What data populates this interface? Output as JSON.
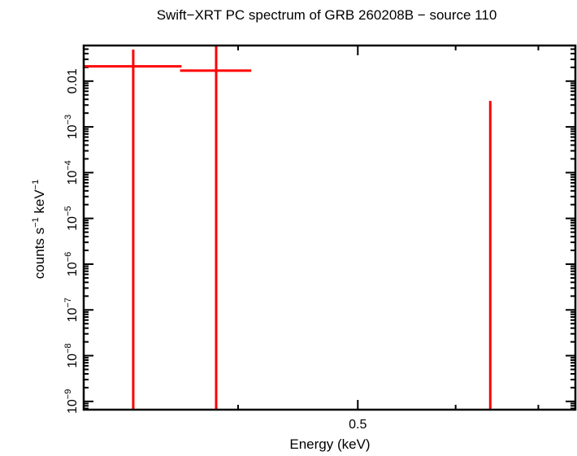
{
  "chart_data": {
    "type": "scatter",
    "title": "Swift−XRT PC spectrum of GRB 260208B − source 110",
    "xlabel": "Energy (keV)",
    "ylabel_main": "counts s",
    "ylabel_sup1": "−1",
    "ylabel_mid": " keV",
    "ylabel_sup2": "−1",
    "x_scale": "log",
    "y_scale": "log",
    "xlim": [
      0.3,
      0.75
    ],
    "ylim": [
      6.6e-10,
      0.06
    ],
    "x_ticks": [
      {
        "value": 0.5,
        "label": "0.5"
      }
    ],
    "x_minor_ticks": [
      0.4,
      0.6,
      0.7
    ],
    "y_ticks": [
      {
        "value": 0.01,
        "base": "0.01",
        "exp": ""
      },
      {
        "value": 0.001,
        "base": "10",
        "exp": "−3"
      },
      {
        "value": 0.0001,
        "base": "10",
        "exp": "−4"
      },
      {
        "value": 1e-05,
        "base": "10",
        "exp": "−5"
      },
      {
        "value": 1e-06,
        "base": "10",
        "exp": "−6"
      },
      {
        "value": 1e-07,
        "base": "10",
        "exp": "−7"
      },
      {
        "value": 1e-08,
        "base": "10",
        "exp": "−8"
      },
      {
        "value": 1e-09,
        "base": "10",
        "exp": "−9"
      }
    ],
    "grid": false,
    "series": [
      {
        "color": "#ff0000",
        "points": [
          {
            "x": 0.329,
            "xlo": 0.3,
            "xhi": 0.36,
            "y": 0.021,
            "ylo": null,
            "yhi": 0.049
          },
          {
            "x": 0.384,
            "xlo": 0.359,
            "xhi": 0.41,
            "y": 0.017,
            "ylo": null,
            "yhi": null
          },
          {
            "x": 0.64,
            "xlo": 0.64,
            "xhi": 0.64,
            "y": null,
            "ylo": null,
            "yhi": 0.0037
          }
        ]
      }
    ]
  }
}
